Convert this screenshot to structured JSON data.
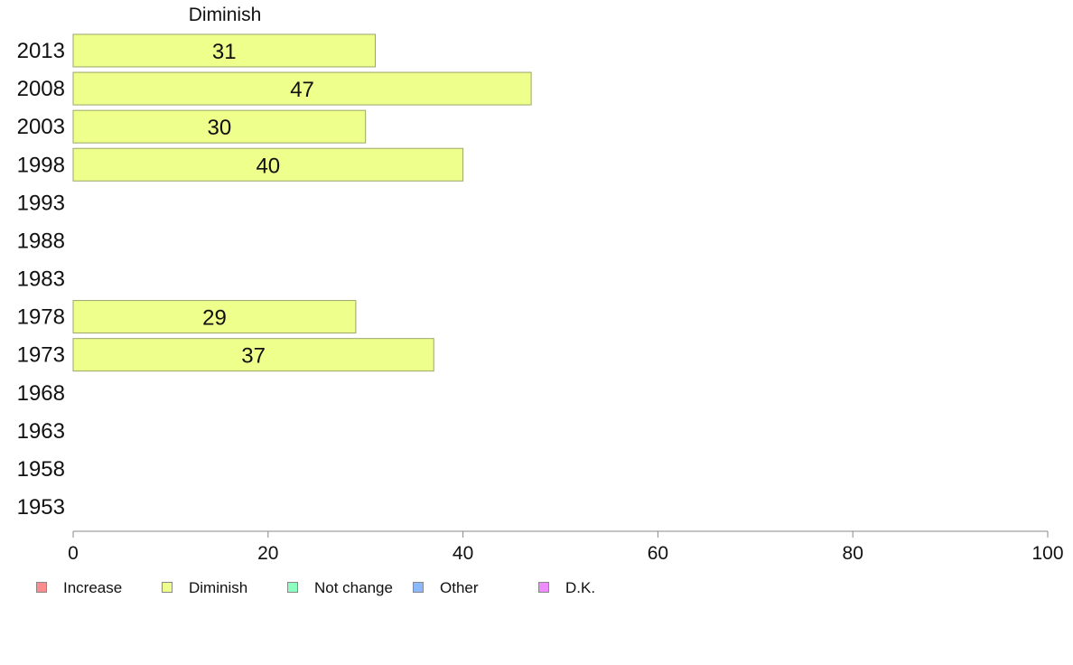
{
  "chart_data": {
    "type": "bar",
    "orientation": "horizontal",
    "categories": [
      "2013",
      "2008",
      "2003",
      "1998",
      "1993",
      "1988",
      "1983",
      "1978",
      "1973",
      "1968",
      "1963",
      "1958",
      "1953"
    ],
    "series": [
      {
        "name": "Diminish",
        "values": [
          31,
          47,
          30,
          40,
          null,
          null,
          null,
          29,
          37,
          null,
          null,
          null,
          null
        ],
        "color": "#eeff8c"
      }
    ],
    "xlim": [
      0,
      100
    ],
    "xticks": [
      0,
      20,
      40,
      60,
      80,
      100
    ],
    "grid": false,
    "legend": {
      "placement": "bottom",
      "entries": [
        {
          "label": "Increase",
          "color": "#ff8c8c"
        },
        {
          "label": "Diminish",
          "color": "#eeff8c"
        },
        {
          "label": "Not change",
          "color": "#8cffc0"
        },
        {
          "label": "Other",
          "color": "#8cb8ff"
        },
        {
          "label": "D.K.",
          "color": "#ee8cff"
        }
      ]
    }
  }
}
